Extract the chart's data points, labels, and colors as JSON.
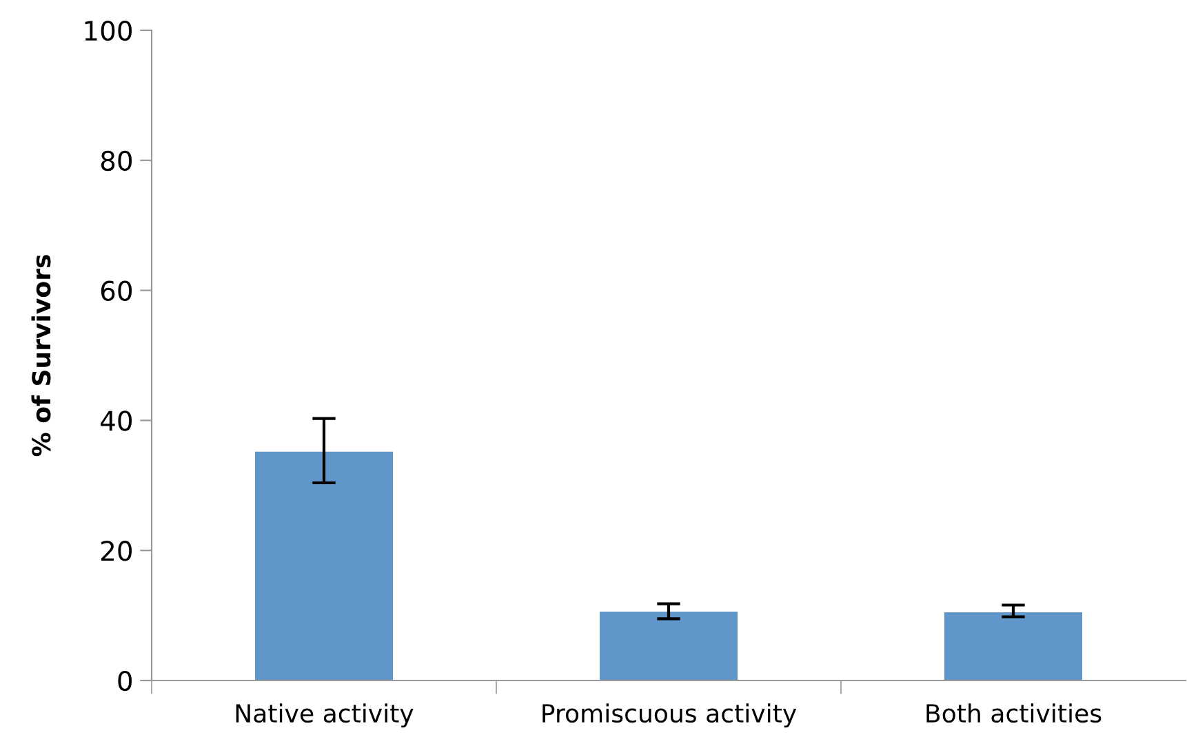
{
  "chart_data": {
    "type": "bar",
    "ylabel": "% of Survivors",
    "categories": [
      "Native activity",
      "Promiscuous activity",
      "Both activities"
    ],
    "values": [
      35.2,
      10.6,
      10.5
    ],
    "errors": [
      [
        30.4,
        40.3
      ],
      [
        9.5,
        11.8
      ],
      [
        9.8,
        11.6
      ]
    ],
    "color": "#6096c9",
    "ylim": [
      0,
      100
    ],
    "yticks": [
      0,
      20,
      40,
      60,
      80,
      100
    ],
    "grid": false
  }
}
